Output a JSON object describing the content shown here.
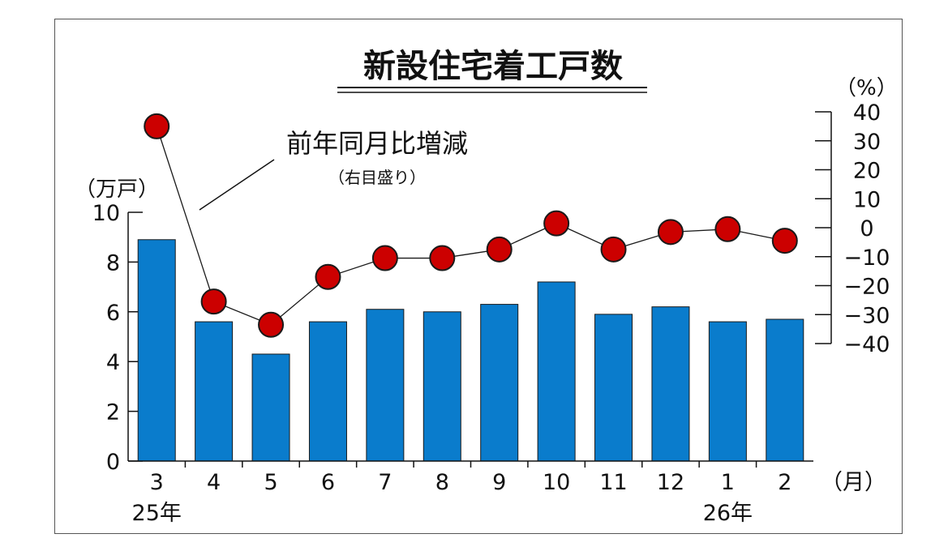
{
  "chart_data": {
    "type": "bar",
    "title": "新設住宅着工戸数",
    "categories": [
      "3",
      "4",
      "5",
      "6",
      "7",
      "8",
      "9",
      "10",
      "11",
      "12",
      "1",
      "2"
    ],
    "year_labels": [
      "25年",
      "",
      "",
      "",
      "",
      "",
      "",
      "",
      "",
      "",
      "26年",
      ""
    ],
    "x_unit": "（月）",
    "series": [
      {
        "type": "bar",
        "axis": "left",
        "values": [
          8.9,
          5.6,
          4.3,
          5.6,
          6.1,
          6.0,
          6.3,
          7.2,
          5.9,
          6.2,
          5.6,
          5.7
        ],
        "color": "#0a7ccc"
      },
      {
        "type": "line",
        "axis": "right",
        "name": "前年同月比増減",
        "values": [
          35.0,
          -25.5,
          -33.5,
          -17.0,
          -10.5,
          -10.5,
          -7.5,
          1.5,
          -7.5,
          -1.5,
          -0.5,
          -4.5
        ],
        "color": "#cc0000"
      }
    ],
    "y_left": {
      "label": "（万戸）",
      "ylim": [
        0,
        10
      ],
      "ticks": [
        "0",
        "2",
        "4",
        "6",
        "8",
        "10"
      ]
    },
    "y_right": {
      "label": "（%）",
      "ylim": [
        -40,
        40
      ],
      "ticks": [
        "40",
        "30",
        "20",
        "10",
        "0",
        "−10",
        "−20",
        "−30",
        "−40"
      ]
    },
    "annotation": {
      "text": "前年同月比増減",
      "sub": "（右目盛り）"
    }
  }
}
